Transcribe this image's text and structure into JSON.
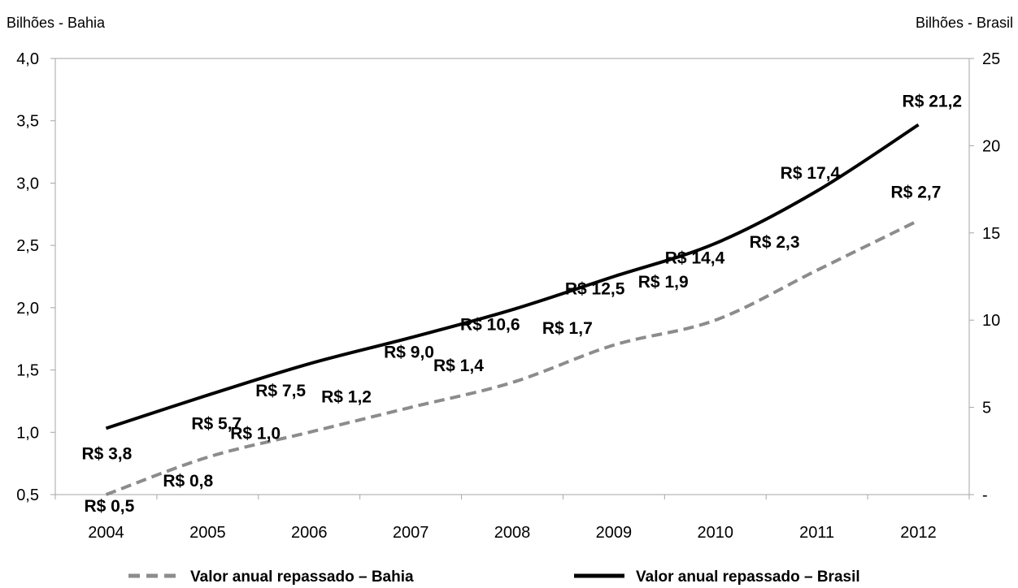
{
  "chart_data": {
    "type": "line",
    "x": [
      "2004",
      "2005",
      "2006",
      "2007",
      "2008",
      "2009",
      "2010",
      "2011",
      "2012"
    ],
    "y_left_label": "Bilhões - Bahia",
    "y_right_label": "Bilhões - Brasil",
    "y_left_ticks": [
      "0,5",
      "1,0",
      "1,5",
      "2,0",
      "2,5",
      "3,0",
      "3,5",
      "4,0"
    ],
    "y_right_ticks": [
      "-",
      "5",
      "10",
      "15",
      "20",
      "25"
    ],
    "y_left_range": [
      0.5,
      4.0
    ],
    "y_right_range": [
      0,
      25
    ],
    "grid": false,
    "legend_position": "bottom",
    "series": [
      {
        "name": "Valor anual repassado – Bahia",
        "axis": "left",
        "style": "dashed",
        "color": "#8c8c8c",
        "values": [
          0.5,
          0.8,
          1.0,
          1.2,
          1.4,
          1.7,
          1.9,
          2.3,
          2.7
        ],
        "labels": [
          "R$ 0,5",
          "R$ 0,8",
          "R$ 1,0",
          "R$ 1,2",
          "R$ 1,4",
          "R$ 1,7",
          "R$ 1,9",
          "R$ 2,3",
          "R$ 2,7"
        ]
      },
      {
        "name": "Valor anual repassado – Brasil",
        "axis": "right",
        "style": "solid",
        "color": "#000000",
        "values": [
          3.8,
          5.7,
          7.5,
          9.0,
          10.6,
          12.5,
          14.4,
          17.4,
          21.2
        ],
        "labels": [
          "R$ 3,8",
          "R$ 5,7",
          "R$ 7,5",
          "R$ 9,0",
          "R$ 10,6",
          "R$ 12,5",
          "R$ 14,4",
          "R$ 17,4",
          "R$ 21,2"
        ]
      }
    ]
  }
}
